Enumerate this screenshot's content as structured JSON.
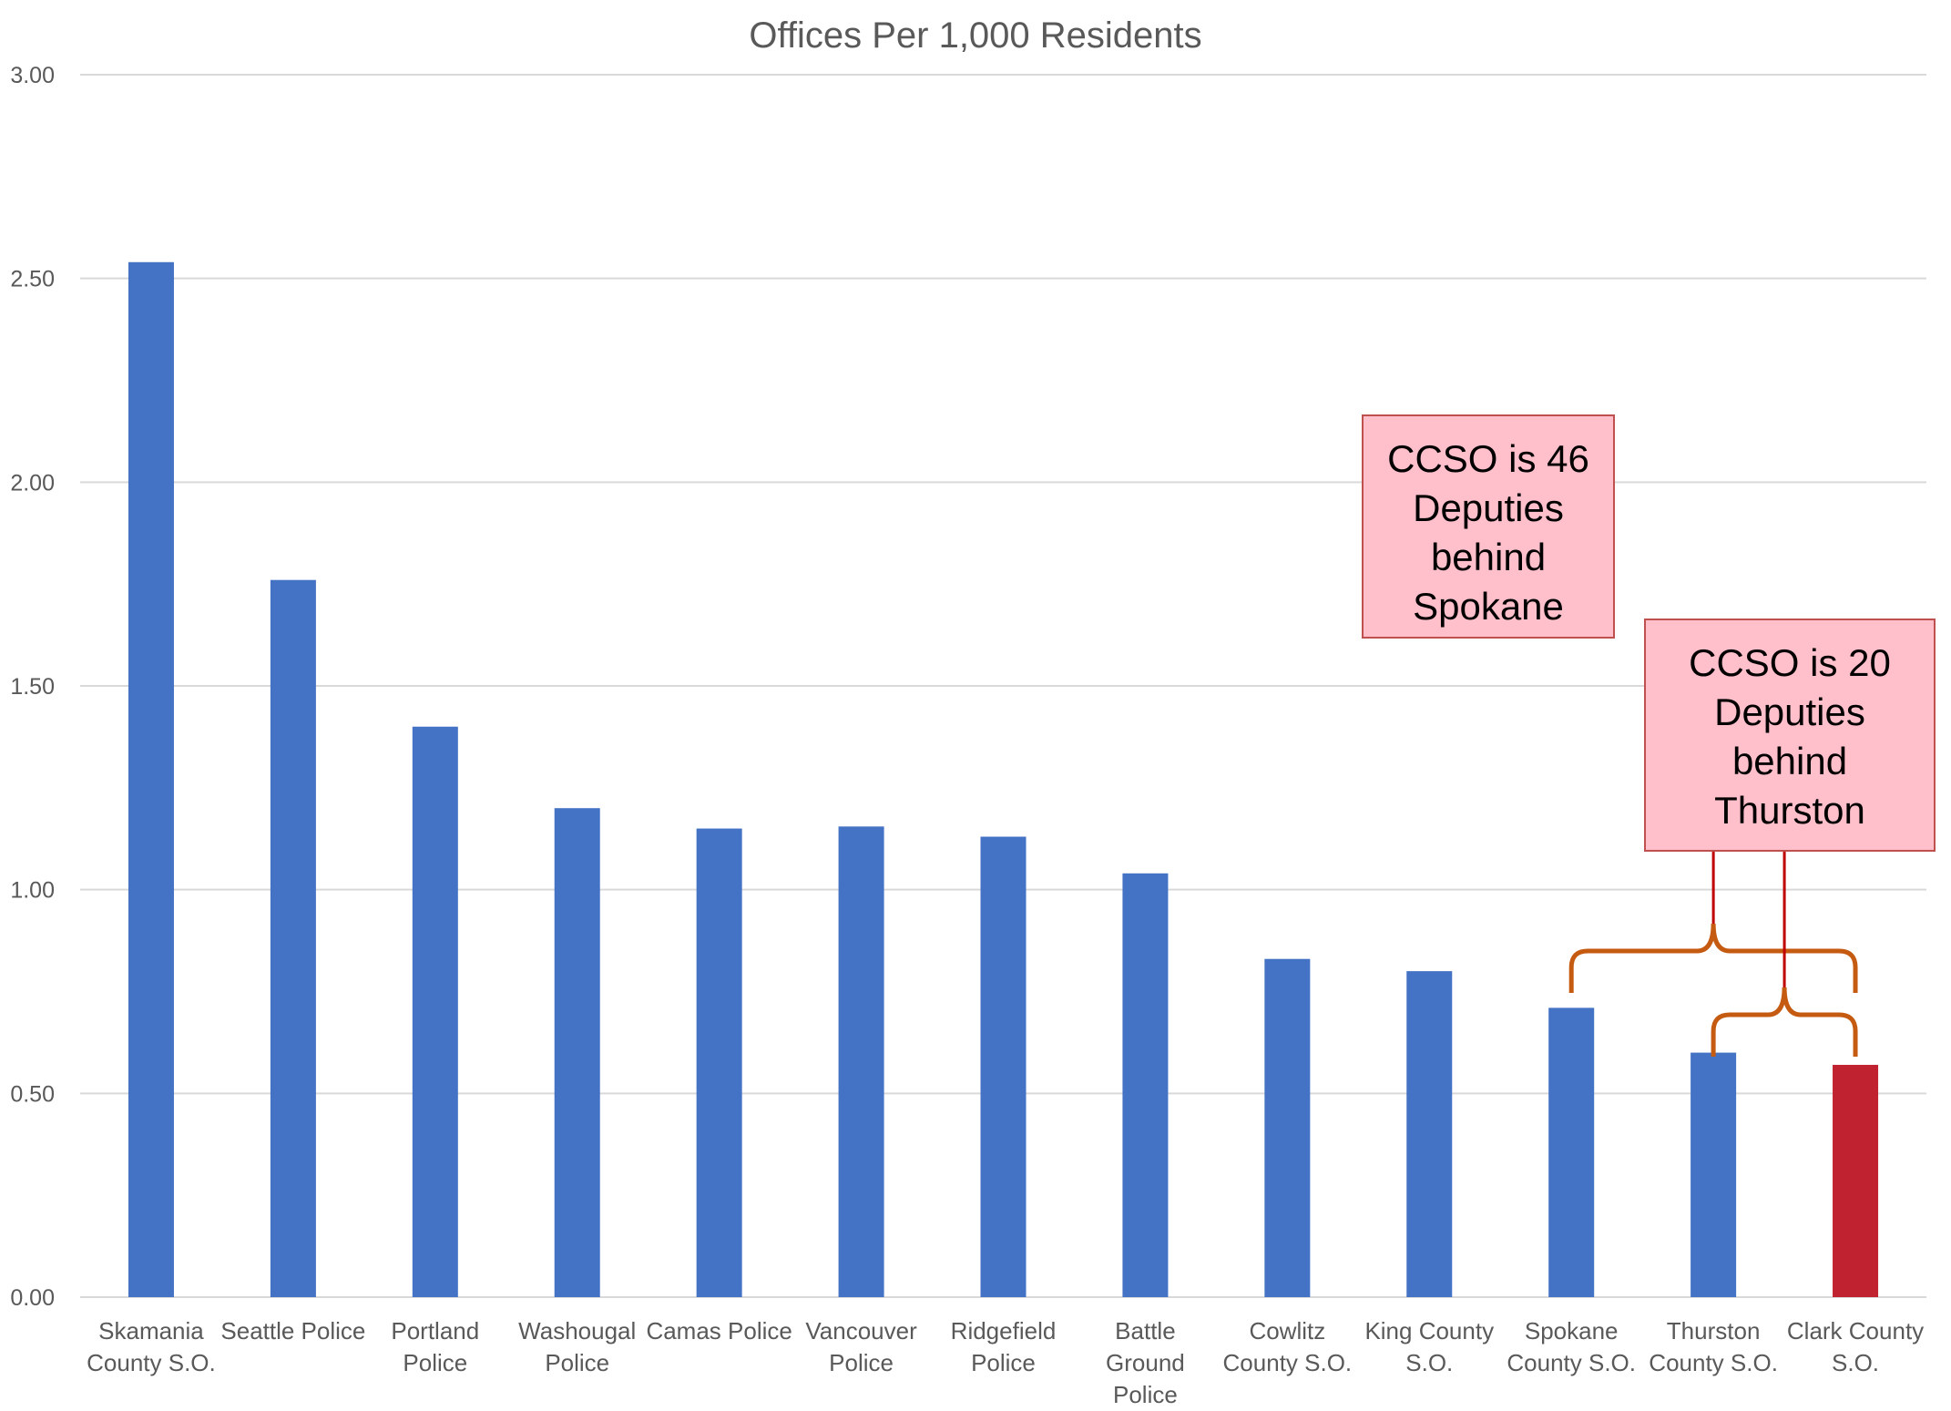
{
  "chart_data": {
    "type": "bar",
    "title": "Offices Per 1,000 Residents",
    "xlabel": "",
    "ylabel": "",
    "ylim": [
      0,
      3
    ],
    "yticks": [
      "0.00",
      "0.50",
      "1.00",
      "1.50",
      "2.00",
      "2.50",
      "3.00"
    ],
    "grid": true,
    "legend": "none",
    "categories": [
      [
        "Skamania",
        "County S.O."
      ],
      [
        "Seattle Police"
      ],
      [
        "Portland",
        "Police"
      ],
      [
        "Washougal",
        "Police"
      ],
      [
        "Camas Police"
      ],
      [
        "Vancouver",
        "Police"
      ],
      [
        "Ridgefield",
        "Police"
      ],
      [
        "Battle",
        "Ground",
        "Police"
      ],
      [
        "Cowlitz",
        "County S.O."
      ],
      [
        "King County",
        "S.O."
      ],
      [
        "Spokane",
        "County S.O."
      ],
      [
        "Thurston",
        "County S.O."
      ],
      [
        "Clark County",
        "S.O."
      ]
    ],
    "values": [
      2.54,
      1.76,
      1.4,
      1.2,
      1.15,
      1.155,
      1.13,
      1.04,
      0.83,
      0.8,
      0.71,
      0.6,
      0.57
    ],
    "colors": {
      "default": "#4472c4",
      "highlight": "#c0232f",
      "highlight_index": 12,
      "callout_fill": "#ffc0cb",
      "callout_border": "#c0504d",
      "bracket": "#c55a11",
      "leader": "#c00000"
    },
    "annotations": [
      {
        "lines": [
          "CCSO is 46",
          "Deputies",
          "behind",
          "Spokane"
        ],
        "bracket_from": 10,
        "bracket_to": 12
      },
      {
        "lines": [
          "CCSO is 20",
          "Deputies",
          "behind",
          "Thurston"
        ],
        "bracket_from": 11,
        "bracket_to": 12
      }
    ]
  }
}
